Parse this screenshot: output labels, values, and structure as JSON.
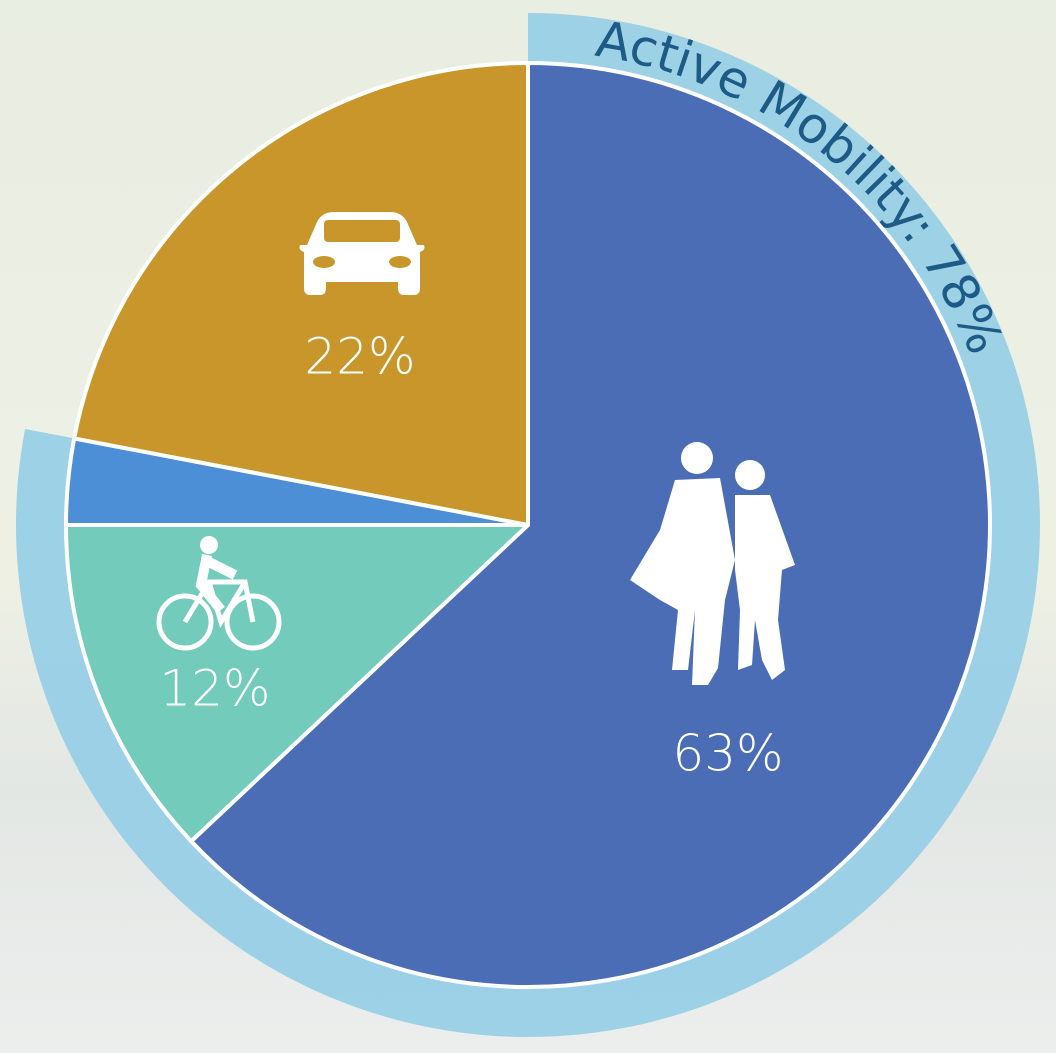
{
  "chart_data": {
    "type": "pie",
    "categories": [
      null,
      null,
      null,
      null
    ],
    "values": [
      63,
      12,
      3,
      22
    ],
    "value_labels": [
      "63%",
      "12%",
      null,
      "22%"
    ],
    "colors": [
      "#4a6db6",
      "#72cbbb",
      "#4d8fd6",
      "#c8962b"
    ],
    "active_mobility": {
      "label": "Active Mobility: 78%",
      "value": 78,
      "color": "#8ecbe6"
    }
  }
}
